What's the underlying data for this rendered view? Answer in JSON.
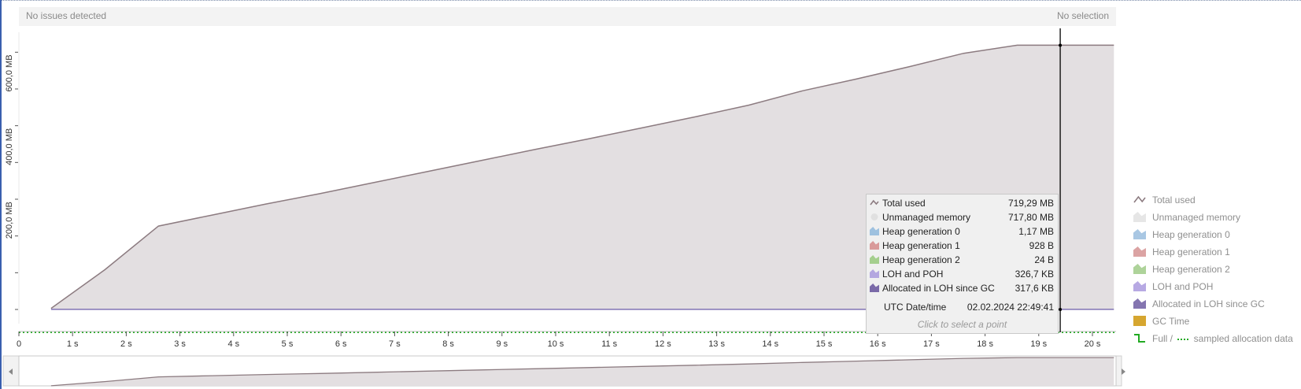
{
  "status": {
    "issues": "No issues detected",
    "selection": "No selection"
  },
  "colors": {
    "unmanaged_fill": "#e3dfe1",
    "total_line": "#8c7b80",
    "loh_line": "#6a5aa8",
    "sampled_dots": "#22aa22",
    "cursor": "#000000",
    "accent_border": "#3a5fae"
  },
  "chart_data": {
    "type": "area",
    "xlabel": "",
    "ylabel": "",
    "xlim": [
      0,
      20.4
    ],
    "ylim": [
      0,
      720
    ],
    "x_ticks": [
      0,
      1,
      2,
      3,
      4,
      5,
      6,
      7,
      8,
      9,
      10,
      11,
      12,
      13,
      14,
      15,
      16,
      17,
      18,
      19,
      20
    ],
    "x_tick_labels": [
      "0",
      "1 s",
      "2 s",
      "3 s",
      "4 s",
      "5 s",
      "6 s",
      "7 s",
      "8 s",
      "9 s",
      "10 s",
      "11 s",
      "12 s",
      "13 s",
      "14 s",
      "15 s",
      "16 s",
      "17 s",
      "18 s",
      "19 s",
      "20 s"
    ],
    "y_ticks": [
      200,
      400,
      600
    ],
    "y_tick_labels": [
      "200,0 MB",
      "400,0 MB",
      "600,0 MB"
    ],
    "y_minor_ticks": [
      0,
      100,
      200,
      300,
      400,
      500,
      600,
      700
    ],
    "series": [
      {
        "name": "Total used",
        "x": [
          0.6,
          1.6,
          2.6,
          3.6,
          4.6,
          5.6,
          6.6,
          7.6,
          8.6,
          9.6,
          10.6,
          11.6,
          12.6,
          13.6,
          14.6,
          15.6,
          16.6,
          17.6,
          18.6,
          19.4,
          20.4
        ],
        "values": [
          3,
          108,
          227,
          257,
          287,
          315,
          345,
          375,
          405,
          435,
          464,
          494,
          524,
          556,
          595,
          627,
          661,
          697,
          719,
          719,
          719
        ]
      },
      {
        "name": "LOH and POH",
        "x": [
          0.6,
          20.4
        ],
        "values": [
          0.3,
          0.3
        ]
      }
    ],
    "cursor_x": 19.4,
    "legend_position": "right"
  },
  "tooltip": {
    "rows": [
      {
        "label": "Total used",
        "value": "719,29 MB",
        "icon": "line-icon",
        "color": "#8c7b80"
      },
      {
        "label": "Unmanaged memory",
        "value": "717,80 MB",
        "icon": "circle-icon",
        "color": "#e0e0e0"
      },
      {
        "label": "Heap generation 0",
        "value": "1,17 MB",
        "icon": "area-icon",
        "color": "#9ec1df"
      },
      {
        "label": "Heap generation 1",
        "value": "928 B",
        "icon": "area-icon",
        "color": "#d99a9a"
      },
      {
        "label": "Heap generation 2",
        "value": "24 B",
        "icon": "area-icon",
        "color": "#a5cf8e"
      },
      {
        "label": "LOH and POH",
        "value": "326,7 KB",
        "icon": "area-icon",
        "color": "#b4a7e0"
      },
      {
        "label": "Allocated in LOH since GC",
        "value": "317,6 KB",
        "icon": "area-icon",
        "color": "#7a6aa8"
      }
    ],
    "date_label": "UTC Date/time",
    "date_value": "02.02.2024 22:49:41",
    "hint": "Click to select a point"
  },
  "legend": {
    "items": [
      {
        "label": "Total used",
        "icon": "line-icon",
        "color": "#8c7b80"
      },
      {
        "label": "Unmanaged memory",
        "icon": "area-icon",
        "color": "#e6e6e6"
      },
      {
        "label": "Heap generation 0",
        "icon": "area-icon",
        "color": "#a9c7e3"
      },
      {
        "label": "Heap generation 1",
        "icon": "area-icon",
        "color": "#dba3a3"
      },
      {
        "label": "Heap generation 2",
        "icon": "area-icon",
        "color": "#aed39a"
      },
      {
        "label": "LOH and POH",
        "icon": "area-icon",
        "color": "#b7a9e3"
      },
      {
        "label": "Allocated in LOH since GC",
        "icon": "area-icon",
        "color": "#8475b0"
      },
      {
        "label": "GC Time",
        "icon": "square-icon",
        "color": "#d6a630"
      },
      {
        "label": "Full / ",
        "label2": " sampled allocation data",
        "icon": "step-icon",
        "color": "#22aa22"
      }
    ]
  }
}
